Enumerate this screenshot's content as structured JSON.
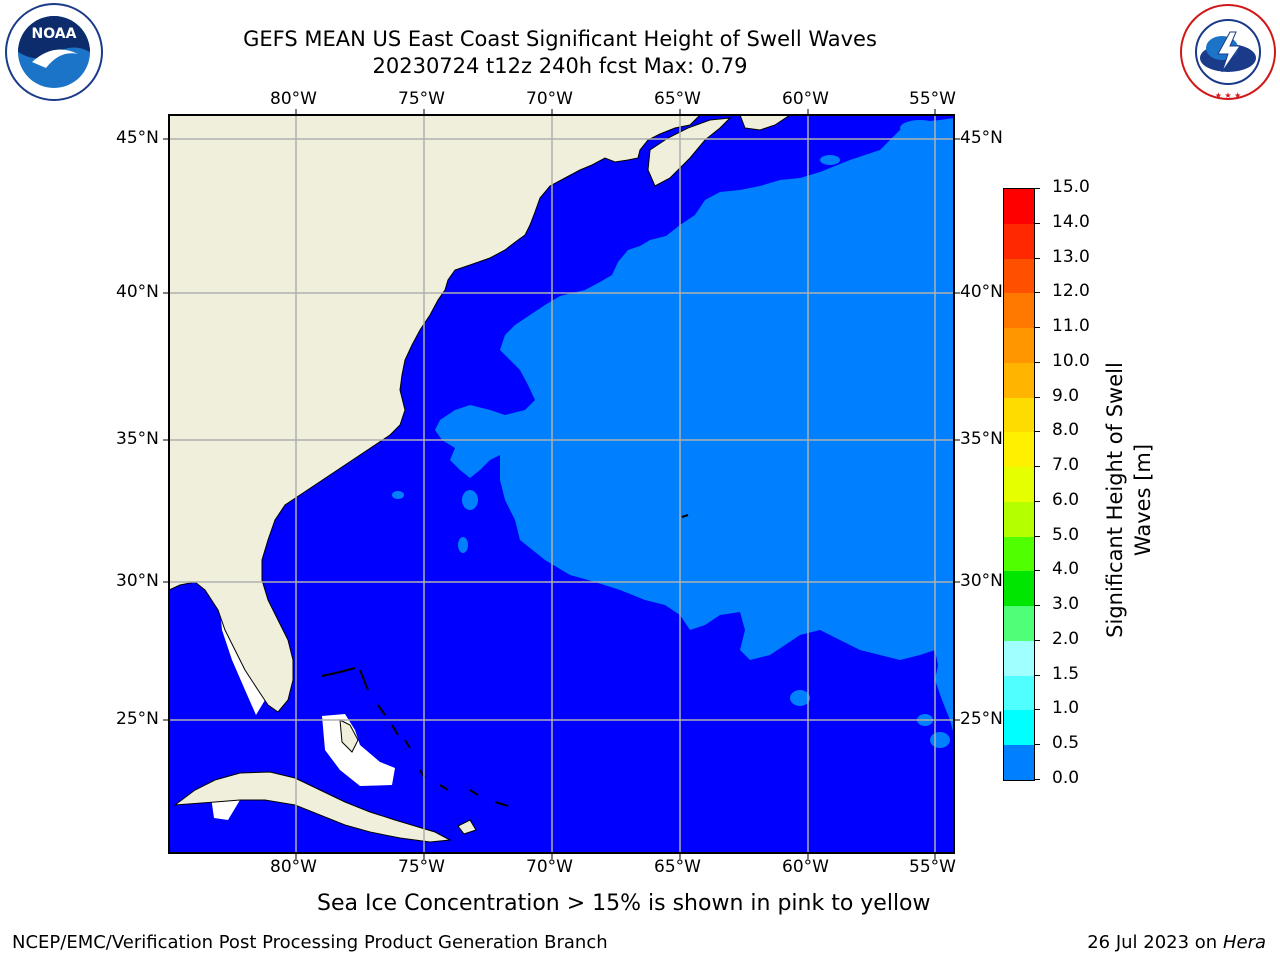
{
  "header": {
    "title_line1": "GEFS MEAN US East Coast Significant Height of Swell Waves",
    "title_line2": "20230724 t12z 240h fcst   Max: 0.79"
  },
  "logos": {
    "noaa_text": "NOAA",
    "noaa_ring": "NATIONAL OCEANIC AND ATMOSPHERIC ADMINISTRATION · U.S. DEPARTMENT OF COMMERCE",
    "nws_ring": "NATIONAL WEATHER SERVICE"
  },
  "map": {
    "lon_labels": [
      "80°W",
      "75°W",
      "70°W",
      "65°W",
      "60°W",
      "55°W"
    ],
    "lat_labels": [
      "45°N",
      "40°N",
      "35°N",
      "30°N",
      "25°N"
    ],
    "colors": {
      "land": "#efefdc",
      "swell_0_0_5": "#0000ff",
      "swell_0_5_1_0": "#0080ff",
      "grid": "#b0b0b0",
      "no_data": "#ffffff"
    }
  },
  "colorbar": {
    "title": "Significant Height of Swell Waves [m]",
    "ticks": [
      "15.0",
      "14.0",
      "13.0",
      "12.0",
      "11.0",
      "10.0",
      "9.0",
      "8.0",
      "7.0",
      "6.0",
      "5.0",
      "4.0",
      "3.0",
      "2.0",
      "1.5",
      "1.0",
      "0.5",
      "0.0"
    ],
    "colors": [
      "#ff0000",
      "#ff2800",
      "#ff5000",
      "#ff7800",
      "#ff9600",
      "#ffb400",
      "#ffdc00",
      "#fff000",
      "#e6ff00",
      "#b4ff00",
      "#50ff00",
      "#00e600",
      "#50ff78",
      "#a0ffff",
      "#50ffff",
      "#00ffff",
      "#0080ff",
      "#0000ff"
    ]
  },
  "caption": "Sea Ice Concentration > 15% is shown in pink to yellow",
  "footer": {
    "left": "NCEP/EMC/Verification Post Processing Product Generation Branch",
    "right_prefix": "26 Jul 2023 on ",
    "right_host": "Hera"
  }
}
